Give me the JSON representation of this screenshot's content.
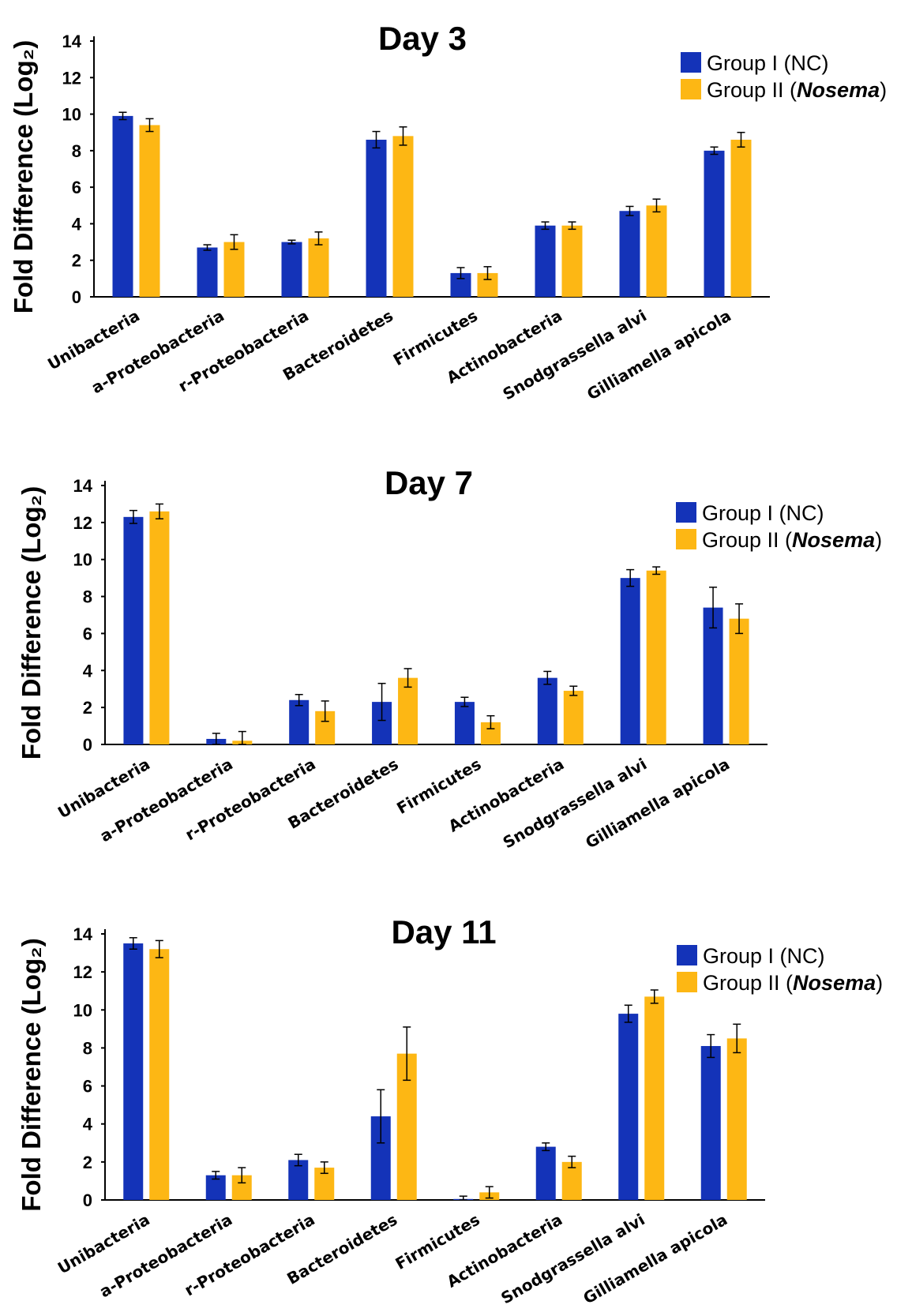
{
  "colors": {
    "group1": "#1433b8",
    "group2": "#fdb714",
    "axis": "#000000"
  },
  "chart_data": [
    {
      "type": "bar",
      "title": "Day 3",
      "ylabel": "Fold Difference (Log₂)",
      "xlabel": "",
      "ylim": [
        0,
        14
      ],
      "yticks": [
        "0",
        "2",
        "4",
        "6",
        "8",
        "10",
        "12",
        "14"
      ],
      "grid": false,
      "legend_position": "top-right",
      "categories": [
        "Unibacteria",
        "a-Proteobacteria",
        "r-Proteobacteria",
        "Bacteroidetes",
        "Firmicutes",
        "Actinobacteria",
        "Snodgrassella alvi",
        "Gilliamella apicola"
      ],
      "series": [
        {
          "name": "Group I (NC)",
          "values": [
            9.9,
            2.7,
            3.0,
            8.6,
            1.3,
            3.9,
            4.7,
            8.0
          ],
          "errors": [
            0.2,
            0.15,
            0.1,
            0.45,
            0.3,
            0.2,
            0.25,
            0.2
          ]
        },
        {
          "name": "Group II (Nosema)",
          "values": [
            9.4,
            3.0,
            3.2,
            8.8,
            1.3,
            3.9,
            5.0,
            8.6
          ],
          "errors": [
            0.35,
            0.4,
            0.35,
            0.5,
            0.35,
            0.2,
            0.35,
            0.4
          ]
        }
      ],
      "legend": {
        "g1": "Group I (NC)",
        "g2_prefix": "Group II (",
        "g2_italic": "Nosema",
        "g2_suffix": ")"
      }
    },
    {
      "type": "bar",
      "title": "Day 7",
      "ylabel": "Fold Difference (Log₂)",
      "xlabel": "",
      "ylim": [
        0,
        14
      ],
      "yticks": [
        "0",
        "2",
        "4",
        "6",
        "8",
        "10",
        "12",
        "14"
      ],
      "grid": false,
      "legend_position": "top-right",
      "categories": [
        "Unibacteria",
        "a-Proteobacteria",
        "r-Proteobacteria",
        "Bacteroidetes",
        "Firmicutes",
        "Actinobacteria",
        "Snodgrassella alvi",
        "Gilliamella apicola"
      ],
      "series": [
        {
          "name": "Group I (NC)",
          "values": [
            12.3,
            0.3,
            2.4,
            2.3,
            2.3,
            3.6,
            9.0,
            7.4
          ],
          "errors": [
            0.35,
            0.3,
            0.3,
            1.0,
            0.25,
            0.35,
            0.45,
            1.1
          ]
        },
        {
          "name": "Group II (Nosema)",
          "values": [
            12.6,
            0.2,
            1.8,
            3.6,
            1.2,
            2.9,
            9.4,
            6.8
          ],
          "errors": [
            0.4,
            0.5,
            0.55,
            0.5,
            0.35,
            0.25,
            0.2,
            0.8
          ]
        }
      ],
      "legend": {
        "g1": "Group I (NC)",
        "g2_prefix": "Group II (",
        "g2_italic": "Nosema",
        "g2_suffix": ")"
      }
    },
    {
      "type": "bar",
      "title": "Day 11",
      "ylabel": "Fold Difference (Log₂)",
      "xlabel": "",
      "ylim": [
        0,
        14
      ],
      "yticks": [
        "0",
        "2",
        "4",
        "6",
        "8",
        "10",
        "12",
        "14"
      ],
      "grid": false,
      "legend_position": "top-right",
      "categories": [
        "Unibacteria",
        "a-Proteobacteria",
        "r-Proteobacteria",
        "Bacteroidetes",
        "Firmicutes",
        "Actinobacteria",
        "Snodgrassella alvi",
        "Gilliamella apicola"
      ],
      "series": [
        {
          "name": "Group I (NC)",
          "values": [
            13.5,
            1.3,
            2.1,
            4.4,
            0.05,
            2.8,
            9.8,
            8.1
          ],
          "errors": [
            0.3,
            0.2,
            0.3,
            1.4,
            0.15,
            0.2,
            0.45,
            0.6
          ]
        },
        {
          "name": "Group II (Nosema)",
          "values": [
            13.2,
            1.3,
            1.7,
            7.7,
            0.4,
            2.0,
            10.7,
            8.5
          ],
          "errors": [
            0.45,
            0.4,
            0.3,
            1.4,
            0.3,
            0.3,
            0.35,
            0.75
          ]
        }
      ],
      "legend": {
        "g1": "Group I (NC)",
        "g2_prefix": "Group II (",
        "g2_italic": "Nosema",
        "g2_suffix": ")"
      }
    }
  ]
}
